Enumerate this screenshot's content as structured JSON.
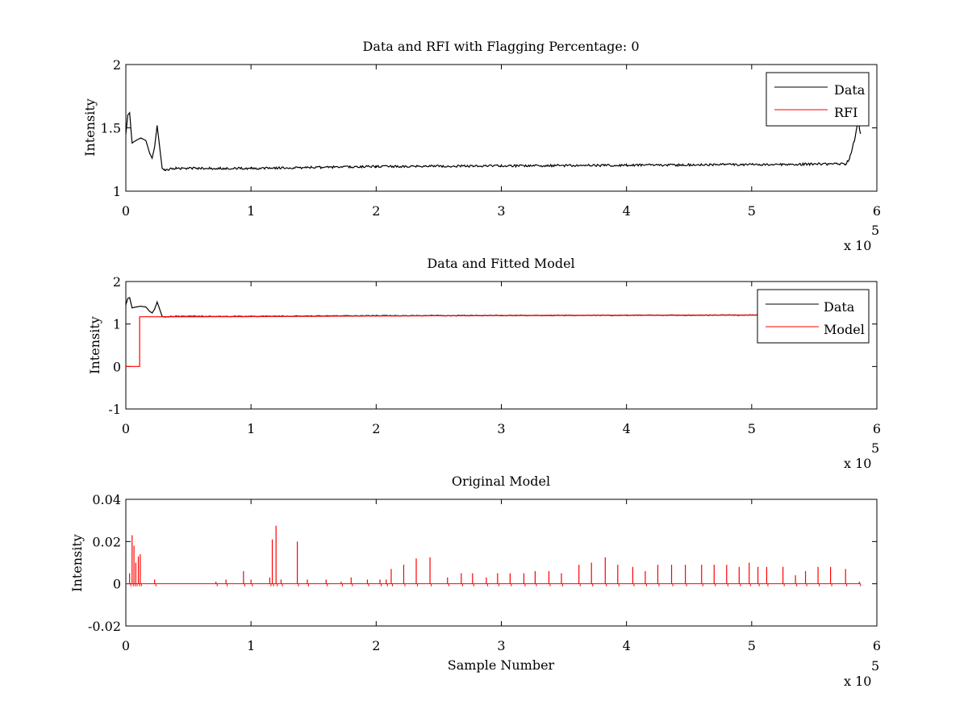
{
  "figure": {
    "background": "#ffffff"
  },
  "chart_data": [
    {
      "type": "line",
      "title": "Data and RFI with Flagging Percentage: 0",
      "xlabel": "",
      "ylabel": "Intensity",
      "xlim": [
        0,
        600000
      ],
      "ylim": [
        1,
        2
      ],
      "xticks": [
        0,
        1,
        2,
        3,
        4,
        5,
        6
      ],
      "yticks": [
        "1",
        "1.5",
        "2"
      ],
      "x_multiplier": {
        "base": "x 10",
        "exponent": "5"
      },
      "legend": {
        "position": "top-right",
        "entries": [
          "Data",
          "RFI"
        ]
      },
      "series": [
        {
          "name": "Data",
          "color": "#000000",
          "points": [
            [
              0,
              1.45
            ],
            [
              1500,
              1.6
            ],
            [
              3000,
              1.62
            ],
            [
              5000,
              1.38
            ],
            [
              8000,
              1.4
            ],
            [
              12000,
              1.42
            ],
            [
              16000,
              1.4
            ],
            [
              19000,
              1.3
            ],
            [
              21000,
              1.26
            ],
            [
              23000,
              1.35
            ],
            [
              25000,
              1.52
            ],
            [
              27000,
              1.35
            ],
            [
              29000,
              1.18
            ],
            [
              31000,
              1.17
            ],
            [
              40000,
              1.18
            ],
            [
              100000,
              1.18
            ],
            [
              200000,
              1.195
            ],
            [
              300000,
              1.2
            ],
            [
              400000,
              1.205
            ],
            [
              500000,
              1.21
            ],
            [
              575000,
              1.215
            ],
            [
              578000,
              1.25
            ],
            [
              582000,
              1.4
            ],
            [
              585000,
              1.55
            ],
            [
              587000,
              1.45
            ]
          ]
        },
        {
          "name": "RFI",
          "color": "#ff0000",
          "points": []
        }
      ]
    },
    {
      "type": "line",
      "title": "Data and Fitted Model",
      "xlabel": "",
      "ylabel": "Intensity",
      "xlim": [
        0,
        600000
      ],
      "ylim": [
        -1,
        2
      ],
      "xticks": [
        0,
        1,
        2,
        3,
        4,
        5,
        6
      ],
      "yticks": [
        "-1",
        "0",
        "1",
        "2"
      ],
      "x_multiplier": {
        "base": "x 10",
        "exponent": "5"
      },
      "legend": {
        "position": "top-right",
        "entries": [
          "Data",
          "Model"
        ]
      },
      "series": [
        {
          "name": "Data",
          "color": "#000000",
          "points": [
            [
              0,
              1.45
            ],
            [
              1500,
              1.6
            ],
            [
              3000,
              1.62
            ],
            [
              5000,
              1.38
            ],
            [
              8000,
              1.4
            ],
            [
              12000,
              1.42
            ],
            [
              16000,
              1.4
            ],
            [
              19000,
              1.3
            ],
            [
              21000,
              1.26
            ],
            [
              23000,
              1.35
            ],
            [
              25000,
              1.52
            ],
            [
              27000,
              1.35
            ],
            [
              29000,
              1.18
            ],
            [
              31000,
              1.17
            ],
            [
              40000,
              1.18
            ],
            [
              100000,
              1.18
            ],
            [
              200000,
              1.195
            ],
            [
              300000,
              1.2
            ],
            [
              400000,
              1.205
            ],
            [
              500000,
              1.21
            ],
            [
              575000,
              1.215
            ]
          ]
        },
        {
          "name": "Model",
          "color": "#ff0000",
          "points": [
            [
              0,
              0
            ],
            [
              11000,
              0
            ],
            [
              11000,
              1.17
            ],
            [
              100000,
              1.175
            ],
            [
              200000,
              1.19
            ],
            [
              300000,
              1.2
            ],
            [
              400000,
              1.205
            ],
            [
              500000,
              1.21
            ],
            [
              587000,
              1.215
            ]
          ]
        }
      ]
    },
    {
      "type": "line",
      "title": "Original Model",
      "xlabel": "Sample Number",
      "ylabel": "Intensity",
      "xlim": [
        0,
        600000
      ],
      "ylim": [
        -0.02,
        0.04
      ],
      "xticks": [
        0,
        1,
        2,
        3,
        4,
        5,
        6
      ],
      "yticks": [
        "-0.02",
        "0",
        "0.02",
        "0.04"
      ],
      "x_multiplier": {
        "base": "x 10",
        "exponent": "5"
      },
      "series": [
        {
          "name": "",
          "color": "#ff0000",
          "baseline": 0,
          "range": [
            0,
            587000
          ],
          "spikes": [
            [
              3000,
              0.005
            ],
            [
              5000,
              0.023
            ],
            [
              6500,
              0.018
            ],
            [
              8000,
              0.01
            ],
            [
              10000,
              0.013
            ],
            [
              11500,
              0.014
            ],
            [
              23000,
              0.002
            ],
            [
              72000,
              0.001
            ],
            [
              80000,
              0.002
            ],
            [
              94000,
              0.006
            ],
            [
              100000,
              0.002
            ],
            [
              115000,
              0.003
            ],
            [
              117000,
              0.021
            ],
            [
              120000,
              0.0275
            ],
            [
              124000,
              0.002
            ],
            [
              137000,
              0.02
            ],
            [
              145000,
              0.002
            ],
            [
              160000,
              0.002
            ],
            [
              172000,
              0.001
            ],
            [
              180000,
              0.003
            ],
            [
              193000,
              0.002
            ],
            [
              203000,
              0.002
            ],
            [
              208000,
              0.002
            ],
            [
              212000,
              0.007
            ],
            [
              222000,
              0.009
            ],
            [
              232000,
              0.012
            ],
            [
              243000,
              0.0125
            ],
            [
              257000,
              0.003
            ],
            [
              268000,
              0.005
            ],
            [
              277000,
              0.005
            ],
            [
              288000,
              0.003
            ],
            [
              297000,
              0.005
            ],
            [
              307000,
              0.005
            ],
            [
              318000,
              0.005
            ],
            [
              327000,
              0.006
            ],
            [
              338000,
              0.006
            ],
            [
              348000,
              0.005
            ],
            [
              362000,
              0.009
            ],
            [
              372000,
              0.01
            ],
            [
              383000,
              0.0125
            ],
            [
              393000,
              0.009
            ],
            [
              405000,
              0.008
            ],
            [
              415000,
              0.006
            ],
            [
              425000,
              0.009
            ],
            [
              436000,
              0.009
            ],
            [
              447000,
              0.009
            ],
            [
              460000,
              0.009
            ],
            [
              470000,
              0.009
            ],
            [
              480000,
              0.009
            ],
            [
              490000,
              0.008
            ],
            [
              498000,
              0.01
            ],
            [
              505000,
              0.008
            ],
            [
              512000,
              0.008
            ],
            [
              525000,
              0.008
            ],
            [
              535000,
              0.004
            ],
            [
              543000,
              0.006
            ],
            [
              553000,
              0.008
            ],
            [
              563000,
              0.008
            ],
            [
              575000,
              0.007
            ],
            [
              586000,
              0.001
            ]
          ]
        }
      ]
    }
  ]
}
